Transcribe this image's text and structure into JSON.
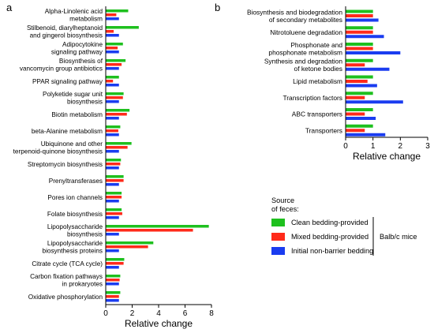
{
  "colors": {
    "clean": "#1ec01e",
    "mixed": "#ff2a1a",
    "initial": "#1a3cf0"
  },
  "legend": {
    "title_lines": [
      "Source",
      "of feces:"
    ],
    "entries": [
      "Clean bedding-provided",
      "Mixed bedding-provided",
      "Initial non-barrier bedding"
    ],
    "group_label": "Balb/c mice",
    "placement": "lower-right"
  },
  "chart_data": [
    {
      "panel": "a",
      "type": "bar",
      "orientation": "horizontal",
      "xlabel": "Relative change",
      "xlim": [
        0,
        8
      ],
      "xticks": [
        0,
        2,
        4,
        6,
        8
      ],
      "categories": [
        [
          "Alpha-Linolenic acid",
          "metabolism"
        ],
        [
          "Stilbenoid, diarylheptanoid",
          "and gingerol biosynthesis"
        ],
        [
          "Adipocytokine",
          "signaling pathway"
        ],
        [
          "Biosynthesis of",
          "vancomycin group antibiotics"
        ],
        [
          "PPAR signaling pathway"
        ],
        [
          "Polyketide sugar unit",
          "biosynthesis"
        ],
        [
          "Biotin metabolism"
        ],
        [
          "beta-Alanine metabolism"
        ],
        [
          "Ubiquinone and other",
          "terpenoid-quinone biosynthesis"
        ],
        [
          "Streptomycin biosynthesis"
        ],
        [
          "Prenyltransferases"
        ],
        [
          "Pores ion channels"
        ],
        [
          "Folate biosynthesis"
        ],
        [
          "Lipopolysaccharide",
          "biosynthesis"
        ],
        [
          "Lipopolysaccharide",
          "biosynthesis proteins"
        ],
        [
          "Citrate cycle (TCA cycle)"
        ],
        [
          "Carbon fixation pathways",
          "in prokaryotes"
        ],
        [
          "Oxidative phosphorylation"
        ]
      ],
      "series": [
        {
          "key": "clean",
          "values": [
            1.7,
            2.5,
            1.3,
            1.5,
            1.0,
            1.35,
            1.8,
            1.1,
            1.95,
            1.15,
            1.35,
            1.2,
            1.2,
            7.8,
            3.6,
            1.4,
            1.1,
            1.1
          ]
        },
        {
          "key": "mixed",
          "values": [
            0.8,
            0.6,
            0.9,
            1.2,
            0.55,
            1.3,
            1.6,
            0.95,
            1.65,
            1.1,
            1.35,
            1.2,
            1.25,
            6.6,
            3.2,
            1.35,
            1.05,
            1.0
          ]
        },
        {
          "key": "initial",
          "values": [
            1.0,
            1.0,
            1.0,
            1.0,
            1.0,
            1.0,
            1.0,
            1.0,
            1.0,
            1.0,
            1.0,
            1.0,
            1.0,
            1.0,
            1.0,
            1.0,
            1.0,
            1.0
          ]
        }
      ]
    },
    {
      "panel": "b",
      "type": "bar",
      "orientation": "horizontal",
      "xlabel": "Relative change",
      "xlim": [
        0,
        3
      ],
      "xticks": [
        0,
        1,
        2,
        3
      ],
      "categories": [
        [
          "Biosynthesis and biodegradation",
          "of secondary metabolites"
        ],
        [
          "Nitrotoluene degradation"
        ],
        [
          "Phosphonate and",
          "phosphonate metabolism"
        ],
        [
          "Synthesis and degradation",
          "of ketone bodies"
        ],
        [
          "Lipid metabolism"
        ],
        [
          "Transcription factors"
        ],
        [
          "ABC transporters"
        ],
        [
          "Transporters"
        ]
      ],
      "series": [
        {
          "key": "clean",
          "values": [
            1.0,
            1.0,
            1.0,
            1.0,
            1.0,
            1.0,
            1.0,
            1.0
          ]
        },
        {
          "key": "mixed",
          "values": [
            1.0,
            1.0,
            1.0,
            0.7,
            0.8,
            0.7,
            0.7,
            0.7
          ]
        },
        {
          "key": "initial",
          "values": [
            1.2,
            1.4,
            2.0,
            1.6,
            1.15,
            2.1,
            1.1,
            1.45
          ]
        }
      ]
    }
  ]
}
